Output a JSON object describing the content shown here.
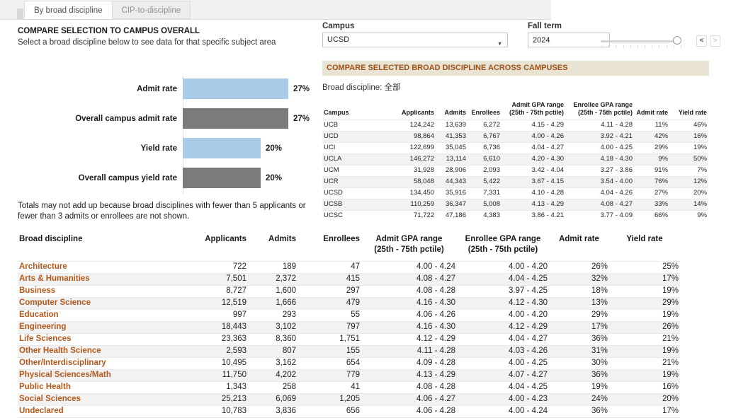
{
  "tabs": {
    "items": [
      {
        "label": "By broad discipline",
        "active": true
      },
      {
        "label": "CIP-to-discipline",
        "active": false
      }
    ]
  },
  "left_panel": {
    "title": "COMPARE SELECTION TO CAMPUS OVERALL",
    "subtitle": "Select a broad discipline below to see data for that specific subject area",
    "note": "Totals may not add up because broad disciplines with fewer than 5 applicants or fewer than 3 admits or enrollees are not shown."
  },
  "chart_data": {
    "type": "bar",
    "orientation": "horizontal",
    "categories": [
      "Admit rate",
      "Overall campus admit rate",
      "Yield rate",
      "Overall campus yield rate"
    ],
    "values": [
      27,
      27,
      20,
      20
    ],
    "value_labels": [
      "27%",
      "27%",
      "20%",
      "20%"
    ],
    "series_colors": [
      "#a9cbe8",
      "#7b7b7b",
      "#a9cbe8",
      "#7b7b7b"
    ],
    "xlim": [
      0,
      30
    ],
    "title": "",
    "xlabel": "",
    "ylabel": ""
  },
  "filters": {
    "campus": {
      "label": "Campus",
      "value": "UCSD"
    },
    "fall_term": {
      "label": "Fall term",
      "value": "2024"
    },
    "prev_label": "<",
    "next_label": ">"
  },
  "campus_comparison": {
    "banner": "COMPARE SELECTED BROAD DISCIPLINE ACROSS CAMPUSES",
    "filter_label": "Broad discipline: 全部",
    "headers": [
      "Campus",
      "Applicants",
      "Admits",
      "Enrollees",
      "Admit GPA range|(25th - 75th pctile)",
      "Enrollee GPA range|(25th - 75th pctile)",
      "Admit rate",
      "Yield rate"
    ],
    "rows": [
      [
        "UCB",
        "124,242",
        "13,639",
        "6,272",
        "4.15 - 4.29",
        "4.11 - 4.28",
        "11%",
        "46%"
      ],
      [
        "UCD",
        "98,864",
        "41,353",
        "6,767",
        "4.00 - 4.26",
        "3.92 - 4.21",
        "42%",
        "16%"
      ],
      [
        "UCI",
        "122,699",
        "35,045",
        "6,736",
        "4.04 - 4.27",
        "4.00 - 4.25",
        "29%",
        "19%"
      ],
      [
        "UCLA",
        "146,272",
        "13,114",
        "6,610",
        "4.20 - 4.30",
        "4.18 - 4.30",
        "9%",
        "50%"
      ],
      [
        "UCM",
        "31,928",
        "28,906",
        "2,093",
        "3.42 - 4.04",
        "3.27 - 3.86",
        "91%",
        "7%"
      ],
      [
        "UCR",
        "58,048",
        "44,343",
        "5,422",
        "3.67 - 4.15",
        "3.54 - 4.00",
        "76%",
        "12%"
      ],
      [
        "UCSD",
        "134,450",
        "35,916",
        "7,331",
        "4.10 - 4.28",
        "4.04 - 4.26",
        "27%",
        "20%"
      ],
      [
        "UCSB",
        "110,259",
        "36,347",
        "5,008",
        "4.13 - 4.29",
        "4.08 - 4.27",
        "33%",
        "14%"
      ],
      [
        "UCSC",
        "71,722",
        "47,186",
        "4,383",
        "3.86 - 4.21",
        "3.77 - 4.09",
        "66%",
        "9%"
      ]
    ]
  },
  "discipline_table": {
    "headers": [
      "Broad discipline",
      "Applicants",
      "Admits",
      "Enrollees",
      "Admit GPA range|(25th - 75th pctile)",
      "Enrollee GPA range|(25th - 75th pctile)",
      "Admit rate",
      "Yield rate"
    ],
    "rows": [
      [
        "Architecture",
        "722",
        "189",
        "47",
        "4.00 - 4.24",
        "4.00 - 4.20",
        "26%",
        "25%"
      ],
      [
        "Arts & Humanities",
        "7,501",
        "2,372",
        "415",
        "4.08 - 4.27",
        "4.04 - 4.25",
        "32%",
        "17%"
      ],
      [
        "Business",
        "8,727",
        "1,600",
        "297",
        "4.08 - 4.28",
        "3.97 - 4.25",
        "18%",
        "19%"
      ],
      [
        "Computer Science",
        "12,519",
        "1,666",
        "479",
        "4.16 - 4.30",
        "4.12 - 4.30",
        "13%",
        "29%"
      ],
      [
        "Education",
        "997",
        "293",
        "55",
        "4.06 - 4.26",
        "4.00 - 4.20",
        "29%",
        "19%"
      ],
      [
        "Engineering",
        "18,443",
        "3,102",
        "797",
        "4.16 - 4.30",
        "4.12 - 4.29",
        "17%",
        "26%"
      ],
      [
        "Life Sciences",
        "23,363",
        "8,360",
        "1,751",
        "4.12 - 4.29",
        "4.04 - 4.27",
        "36%",
        "21%"
      ],
      [
        "Other Health Science",
        "2,593",
        "807",
        "155",
        "4.11 - 4.28",
        "4.03 - 4.26",
        "31%",
        "19%"
      ],
      [
        "Other/Interdisciplinary",
        "10,495",
        "3,162",
        "654",
        "4.09 - 4.28",
        "4.00 - 4.25",
        "30%",
        "21%"
      ],
      [
        "Physical Sciences/Math",
        "11,750",
        "4,202",
        "779",
        "4.13 - 4.29",
        "4.07 - 4.27",
        "36%",
        "19%"
      ],
      [
        "Public Health",
        "1,343",
        "258",
        "41",
        "4.08 - 4.28",
        "4.04 - 4.25",
        "19%",
        "16%"
      ],
      [
        "Social Sciences",
        "25,213",
        "6,069",
        "1,205",
        "4.06 - 4.27",
        "4.00 - 4.23",
        "24%",
        "20%"
      ],
      [
        "Undeclared",
        "10,783",
        "3,836",
        "656",
        "4.06 - 4.28",
        "4.00 - 4.24",
        "36%",
        "17%"
      ]
    ]
  },
  "colors": {
    "selection_bar": "#a9cbe8",
    "overall_bar": "#7b7b7b",
    "banner_bg": "#e8e3d3",
    "banner_text": "#9c5118",
    "discipline_link": "#b05a1e"
  }
}
